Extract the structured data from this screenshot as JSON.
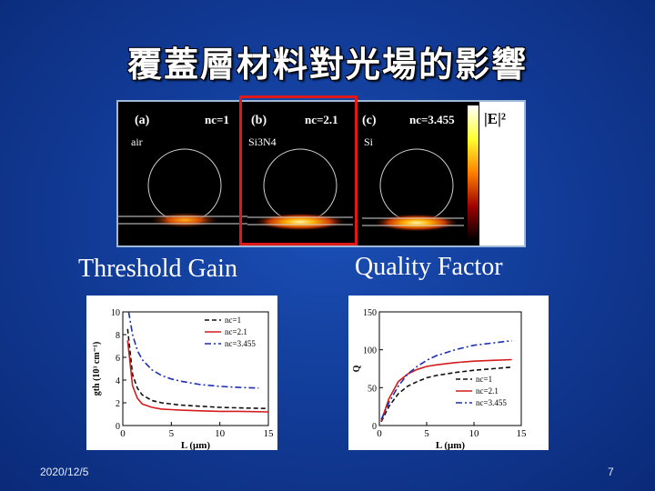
{
  "slide": {
    "title": "覆蓋層材料對光場的影響",
    "left_subtitle": "Threshold Gain",
    "right_subtitle": "Quality Factor",
    "date": "2020/12/5",
    "page_number": "7"
  },
  "field_panels": {
    "colorbar_label": "|E|²",
    "panels": [
      {
        "tag": "(a)",
        "nc": "nc=1",
        "material": "air"
      },
      {
        "tag": "(b)",
        "nc": "nc=2.1",
        "material": "Si3N4"
      },
      {
        "tag": "(c)",
        "nc": "nc=3.455",
        "material": "Si"
      }
    ],
    "highlight_color": "#e01818"
  },
  "chart_data": [
    {
      "type": "line",
      "xlabel": "L (μm)",
      "ylabel": "gth (10³ cm⁻¹)",
      "xlim": [
        0,
        15
      ],
      "ylim": [
        0,
        10
      ],
      "xticks": [
        "0",
        "5",
        "10",
        "15"
      ],
      "yticks": [
        "0",
        "2",
        "4",
        "6",
        "8",
        "10"
      ],
      "legend_position": "top-right",
      "series": [
        {
          "name": "nc=1",
          "color": "#111111",
          "dash": "dash",
          "x": [
            0.5,
            1,
            1.5,
            2,
            3,
            4,
            5,
            6,
            8,
            10,
            12,
            15
          ],
          "y": [
            8.5,
            4.5,
            3.3,
            2.7,
            2.2,
            2.0,
            1.9,
            1.8,
            1.7,
            1.6,
            1.55,
            1.5
          ]
        },
        {
          "name": "nc=2.1",
          "color": "#d41c1c",
          "dash": "solid",
          "x": [
            0.5,
            1,
            1.5,
            2,
            3,
            4,
            5,
            6,
            8,
            10,
            12,
            15
          ],
          "y": [
            7.5,
            3.5,
            2.4,
            1.9,
            1.6,
            1.45,
            1.4,
            1.35,
            1.3,
            1.25,
            1.25,
            1.2
          ]
        },
        {
          "name": "nc=3.455",
          "color": "#1c2fb5",
          "dash": "dashdot",
          "x": [
            0.6,
            1,
            1.5,
            2,
            3,
            4,
            5,
            6,
            8,
            10,
            12,
            14
          ],
          "y": [
            10,
            8.0,
            6.6,
            5.8,
            4.9,
            4.4,
            4.1,
            3.9,
            3.6,
            3.45,
            3.35,
            3.3
          ]
        }
      ]
    },
    {
      "type": "line",
      "xlabel": "L (μm)",
      "ylabel": "Q",
      "xlim": [
        0,
        15
      ],
      "ylim": [
        0,
        150
      ],
      "xticks": [
        "0",
        "5",
        "10",
        "15"
      ],
      "yticks": [
        "0",
        "50",
        "100",
        "150"
      ],
      "legend_position": "bottom-right",
      "series": [
        {
          "name": "nc=1",
          "color": "#111111",
          "dash": "dash",
          "x": [
            0.2,
            1,
            2,
            3,
            4,
            5,
            6,
            8,
            10,
            12,
            14
          ],
          "y": [
            5,
            25,
            42,
            52,
            58,
            63,
            66,
            70,
            73,
            75,
            77
          ]
        },
        {
          "name": "nc=2.1",
          "color": "#d41c1c",
          "dash": "solid",
          "x": [
            0.2,
            1,
            2,
            3,
            4,
            5,
            6,
            8,
            10,
            12,
            14
          ],
          "y": [
            6,
            35,
            58,
            68,
            74,
            78,
            80,
            83,
            85,
            86,
            87
          ]
        },
        {
          "name": "nc=3.455",
          "color": "#1c2fb5",
          "dash": "dashdot",
          "x": [
            0.2,
            1,
            2,
            3,
            4,
            5,
            6,
            8,
            10,
            12,
            14
          ],
          "y": [
            8,
            30,
            52,
            68,
            78,
            86,
            92,
            100,
            106,
            109,
            112
          ]
        }
      ]
    }
  ]
}
